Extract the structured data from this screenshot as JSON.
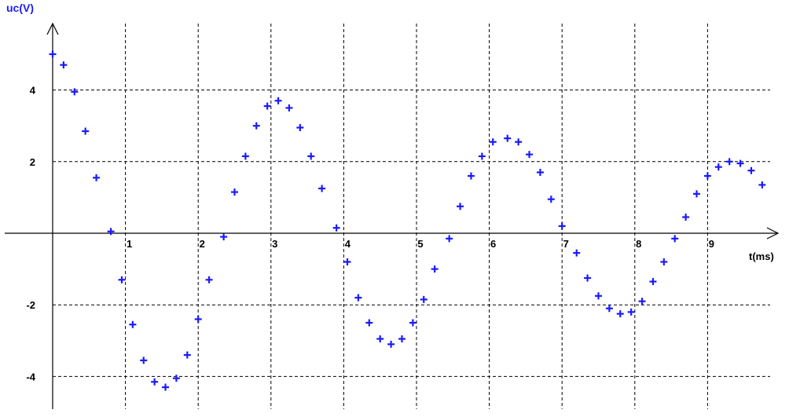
{
  "chart_data": {
    "type": "scatter",
    "title": "",
    "ylabel": "uc(V)",
    "xlabel": "t(ms)",
    "xlim": [
      0,
      10
    ],
    "ylim": [
      -5,
      6
    ],
    "x_ticks": [
      1,
      2,
      3,
      4,
      5,
      6,
      7,
      8,
      9
    ],
    "x_tick_labels": [
      "1",
      "2",
      "3",
      "4",
      "5",
      "6",
      "7",
      "8",
      "9"
    ],
    "y_ticks": [
      4,
      2,
      -2,
      -4
    ],
    "y_tick_labels": [
      "4",
      "2",
      "-2",
      "-4"
    ],
    "grid": true,
    "marker": "+",
    "colors": {
      "marker": "#1a1aff",
      "axis": "#000000",
      "grid": "#000000",
      "ylabel": "#1a1aff"
    },
    "series": [
      {
        "points": [
          [
            0.0,
            5.0
          ],
          [
            0.15,
            4.7
          ],
          [
            0.3,
            3.95
          ],
          [
            0.45,
            2.85
          ],
          [
            0.6,
            1.55
          ],
          [
            0.8,
            0.05
          ],
          [
            0.95,
            -1.3
          ],
          [
            1.1,
            -2.55
          ],
          [
            1.25,
            -3.55
          ],
          [
            1.4,
            -4.15
          ],
          [
            1.55,
            -4.3
          ],
          [
            1.7,
            -4.05
          ],
          [
            1.85,
            -3.4
          ],
          [
            2.0,
            -2.4
          ],
          [
            2.15,
            -1.3
          ],
          [
            2.35,
            -0.1
          ],
          [
            2.5,
            1.15
          ],
          [
            2.65,
            2.15
          ],
          [
            2.8,
            3.0
          ],
          [
            2.95,
            3.55
          ],
          [
            3.1,
            3.7
          ],
          [
            3.25,
            3.5
          ],
          [
            3.4,
            2.95
          ],
          [
            3.55,
            2.15
          ],
          [
            3.7,
            1.25
          ],
          [
            3.9,
            0.15
          ],
          [
            4.05,
            -0.8
          ],
          [
            4.2,
            -1.8
          ],
          [
            4.35,
            -2.5
          ],
          [
            4.5,
            -2.95
          ],
          [
            4.65,
            -3.1
          ],
          [
            4.8,
            -2.95
          ],
          [
            4.95,
            -2.5
          ],
          [
            5.1,
            -1.85
          ],
          [
            5.25,
            -1.0
          ],
          [
            5.45,
            -0.15
          ],
          [
            5.6,
            0.75
          ],
          [
            5.75,
            1.6
          ],
          [
            5.9,
            2.15
          ],
          [
            6.05,
            2.55
          ],
          [
            6.25,
            2.65
          ],
          [
            6.4,
            2.55
          ],
          [
            6.55,
            2.2
          ],
          [
            6.7,
            1.7
          ],
          [
            6.85,
            0.95
          ],
          [
            7.0,
            0.2
          ],
          [
            7.2,
            -0.55
          ],
          [
            7.35,
            -1.25
          ],
          [
            7.5,
            -1.75
          ],
          [
            7.65,
            -2.1
          ],
          [
            7.8,
            -2.25
          ],
          [
            7.95,
            -2.2
          ],
          [
            8.1,
            -1.9
          ],
          [
            8.25,
            -1.35
          ],
          [
            8.4,
            -0.8
          ],
          [
            8.55,
            -0.15
          ],
          [
            8.7,
            0.45
          ],
          [
            8.85,
            1.1
          ],
          [
            9.0,
            1.6
          ],
          [
            9.15,
            1.85
          ],
          [
            9.3,
            2.0
          ],
          [
            9.45,
            1.95
          ],
          [
            9.6,
            1.75
          ],
          [
            9.75,
            1.35
          ]
        ]
      }
    ]
  }
}
